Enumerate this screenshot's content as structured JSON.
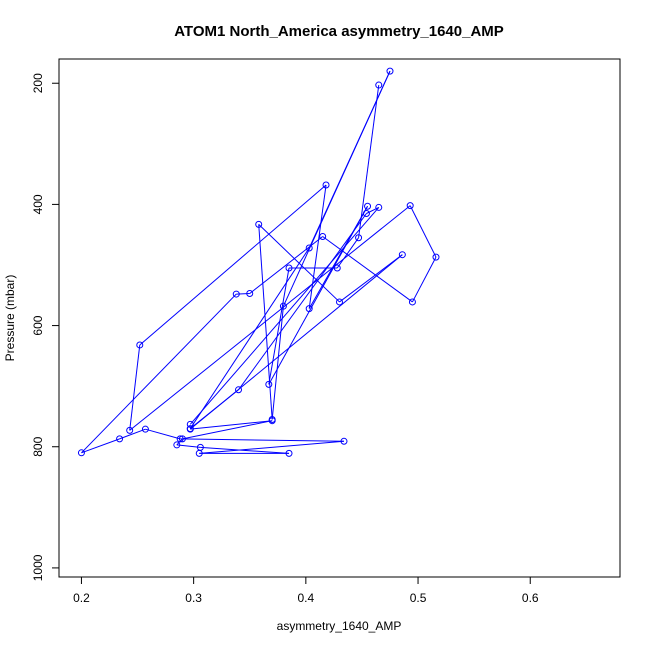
{
  "chart_data": {
    "type": "line",
    "title": "ATOM1 North_America asymmetry_1640_AMP",
    "xlabel": "asymmetry_1640_AMP",
    "ylabel": "Pressure (mbar)",
    "xlim": [
      0.18,
      0.68
    ],
    "ylim": [
      1015,
      160
    ],
    "y_reversed": true,
    "x_ticks": [
      "0.2",
      "0.3",
      "0.4",
      "0.5",
      "0.6"
    ],
    "y_ticks": [
      "200",
      "400",
      "600",
      "800",
      "1000"
    ],
    "x_tick_values": [
      0.2,
      0.3,
      0.4,
      0.5,
      0.6
    ],
    "y_tick_values": [
      200,
      400,
      600,
      800,
      1000
    ],
    "grid": false,
    "legend": "none",
    "line_color": "#0000ff",
    "point_marker": "open-circle",
    "series": [
      {
        "points": [
          [
            0.465,
            203
          ],
          [
            0.447,
            455
          ],
          [
            0.428,
            505
          ],
          [
            0.385,
            505
          ],
          [
            0.367,
            697
          ],
          [
            0.455,
            403
          ],
          [
            0.403,
            572
          ],
          [
            0.418,
            368
          ],
          [
            0.252,
            632
          ],
          [
            0.243,
            773
          ],
          [
            0.493,
            402
          ],
          [
            0.516,
            487
          ],
          [
            0.495,
            561
          ],
          [
            0.415,
            453
          ],
          [
            0.35,
            547
          ],
          [
            0.338,
            548
          ],
          [
            0.2,
            810
          ],
          [
            0.234,
            787
          ],
          [
            0.257,
            771
          ],
          [
            0.288,
            787
          ],
          [
            0.434,
            791
          ],
          [
            0.305,
            811
          ],
          [
            0.385,
            811
          ],
          [
            0.306,
            801
          ],
          [
            0.285,
            797
          ],
          [
            0.29,
            787
          ],
          [
            0.37,
            757
          ],
          [
            0.297,
            771
          ],
          [
            0.486,
            483
          ],
          [
            0.43,
            561
          ],
          [
            0.358,
            433
          ],
          [
            0.37,
            755
          ],
          [
            0.38,
            568
          ],
          [
            0.475,
            180
          ],
          [
            0.403,
            472
          ],
          [
            0.297,
            770
          ],
          [
            0.34,
            706
          ],
          [
            0.454,
            415
          ],
          [
            0.465,
            405
          ],
          [
            0.297,
            763
          ]
        ]
      }
    ]
  }
}
